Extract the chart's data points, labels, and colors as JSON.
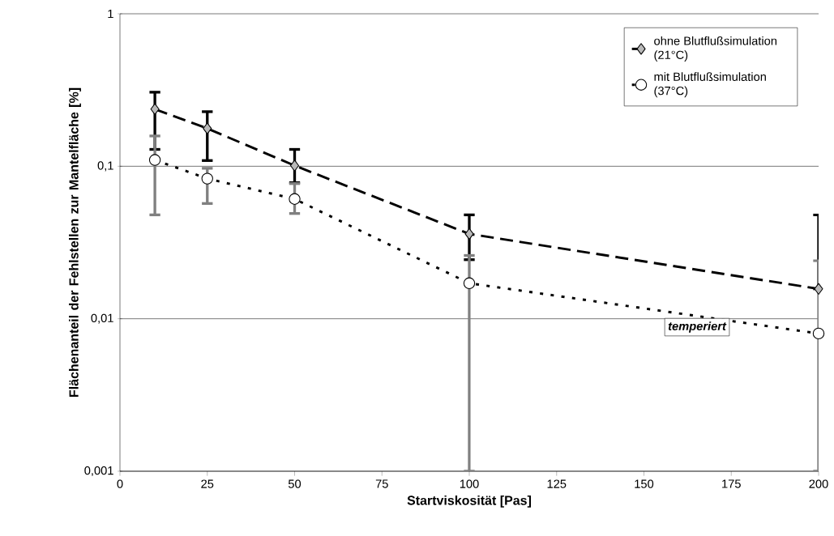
{
  "chart_data": {
    "type": "line",
    "xlabel": "Startviskosität [Pas]",
    "ylabel": "Flächenanteil der Fehlstellen zur Mantelfläche [%]",
    "x": [
      10,
      25,
      50,
      100,
      200
    ],
    "series": [
      {
        "name": "ohne Blutflußsimulation (21°C)",
        "color": "#000000",
        "marker": "diamond",
        "line_style": "dashed",
        "values": [
          0.237,
          0.177,
          0.101,
          0.036,
          0.0157
        ],
        "errors": [
          [
            0.129,
            0.306
          ],
          [
            0.109,
            0.228
          ],
          [
            0.078,
            0.129
          ],
          [
            0.0244,
            0.048
          ],
          [
            0.0157,
            0.048
          ]
        ]
      },
      {
        "name": "mit Blutflußsimulation (37°C)",
        "color": "#000000",
        "marker": "circle",
        "line_style": "dotted",
        "values": [
          0.11,
          0.083,
          0.061,
          0.0171,
          0.008
        ],
        "errors": [
          [
            0.048,
            0.158
          ],
          [
            0.057,
            0.097
          ],
          [
            0.049,
            0.077
          ],
          [
            0.001,
            0.026
          ],
          [
            0.001,
            0.024
          ]
        ]
      }
    ],
    "xlim": [
      0,
      200
    ],
    "xticks": [
      0,
      25,
      50,
      75,
      100,
      125,
      150,
      175,
      200
    ],
    "ylim": [
      0.001,
      1
    ],
    "yticks": [
      {
        "value": 0.001,
        "label": "0,001"
      },
      {
        "value": 0.01,
        "label": "0,01"
      },
      {
        "value": 0.1,
        "label": "0,1"
      },
      {
        "value": 1,
        "label": "1"
      }
    ],
    "log": "y",
    "grid": "y",
    "legend": "top right",
    "annotations": [
      "temperiert"
    ]
  }
}
